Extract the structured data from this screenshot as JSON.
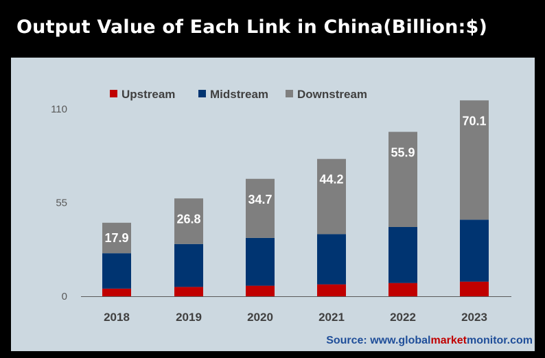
{
  "title": "Output Value of Each Link in China(Billion:$)",
  "source": {
    "prefix": "Source: www.",
    "part1": "global",
    "part2": "market",
    "part3": "monitor",
    "suffix": ".com"
  },
  "colors": {
    "upstream": "#c00000",
    "midstream": "#003471",
    "downstream": "#7f7f7f",
    "panel": "#ccd8e0"
  },
  "chart_data": {
    "type": "bar",
    "stacked": true,
    "title": "Output Value of Each Link in China(Billion:$)",
    "categories": [
      "2018",
      "2019",
      "2020",
      "2021",
      "2022",
      "2023"
    ],
    "series": [
      {
        "name": "Upstream",
        "values": [
          4.5,
          5.5,
          6.2,
          7.0,
          7.8,
          8.6
        ]
      },
      {
        "name": "Midstream",
        "values": [
          20.8,
          25.2,
          28.1,
          29.5,
          32.9,
          36.4
        ]
      },
      {
        "name": "Downstream",
        "values": [
          17.9,
          26.8,
          34.7,
          44.2,
          55.9,
          70.1
        ]
      }
    ],
    "data_labels": [
      "17.9",
      "26.8",
      "34.7",
      "44.2",
      "55.9",
      "70.1"
    ],
    "yticks": [
      "0",
      "55",
      "110"
    ],
    "ylim": [
      0,
      110
    ],
    "grid": false,
    "legend": "top"
  }
}
